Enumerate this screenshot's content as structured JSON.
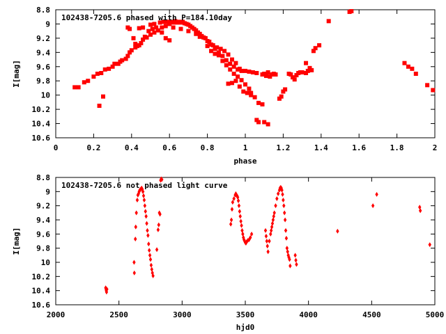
{
  "chart_data": [
    {
      "type": "scatter",
      "title": "102438-7205.6 phased with P=184.10day",
      "xlabel": "phase",
      "ylabel": "I[mag]",
      "xlim": [
        0,
        2
      ],
      "ylim": [
        10.6,
        8.8
      ],
      "y_inverted": true,
      "xticks": [
        0,
        0.2,
        0.4,
        0.6,
        0.8,
        1,
        1.2,
        1.4,
        1.6,
        1.8,
        2
      ],
      "xtick_labels": [
        "0",
        "0.2",
        "0.4",
        "0.6",
        "0.8",
        "1",
        "1.2",
        "1.4",
        "1.6",
        "1.8",
        "2"
      ],
      "yticks": [
        8.8,
        9,
        9.2,
        9.4,
        9.6,
        9.8,
        10,
        10.2,
        10.4,
        10.6
      ],
      "ytick_labels": [
        "8.8",
        "9",
        "9.2",
        "9.4",
        "9.6",
        "9.8",
        "10",
        "10.2",
        "10.4",
        "10.6"
      ],
      "grid": false,
      "marker_color": "#ff0000",
      "marker": "square",
      "points": [
        [
          0.1,
          9.89
        ],
        [
          0.12,
          9.89
        ],
        [
          0.15,
          9.82
        ],
        [
          0.17,
          9.8
        ],
        [
          0.2,
          9.74
        ],
        [
          0.22,
          9.7
        ],
        [
          0.24,
          9.69
        ],
        [
          0.26,
          9.64
        ],
        [
          0.28,
          9.63
        ],
        [
          0.3,
          9.6
        ],
        [
          0.31,
          9.56
        ],
        [
          0.33,
          9.56
        ],
        [
          0.34,
          9.53
        ],
        [
          0.35,
          9.51
        ],
        [
          0.37,
          9.49
        ],
        [
          0.38,
          9.45
        ],
        [
          0.39,
          9.4
        ],
        [
          0.4,
          9.37
        ],
        [
          0.42,
          9.33
        ],
        [
          0.44,
          9.3
        ],
        [
          0.45,
          9.27
        ],
        [
          0.46,
          9.22
        ],
        [
          0.48,
          9.19
        ],
        [
          0.5,
          9.15
        ],
        [
          0.52,
          9.12
        ],
        [
          0.54,
          9.09
        ],
        [
          0.56,
          9.05
        ],
        [
          0.58,
          9.03
        ],
        [
          0.6,
          9.0
        ],
        [
          0.62,
          8.98
        ],
        [
          0.64,
          8.98
        ],
        [
          0.66,
          8.98
        ],
        [
          0.68,
          8.99
        ],
        [
          0.7,
          9.01
        ],
        [
          0.72,
          9.05
        ],
        [
          0.74,
          9.09
        ],
        [
          0.76,
          9.14
        ],
        [
          0.78,
          9.19
        ],
        [
          0.8,
          9.24
        ],
        [
          0.82,
          9.29
        ],
        [
          0.84,
          9.35
        ],
        [
          0.86,
          9.4
        ],
        [
          0.88,
          9.45
        ],
        [
          0.9,
          9.51
        ],
        [
          0.92,
          9.56
        ],
        [
          0.94,
          9.6
        ],
        [
          0.96,
          9.64
        ],
        [
          0.98,
          9.66
        ],
        [
          1.0,
          9.66
        ],
        [
          1.02,
          9.67
        ],
        [
          1.04,
          9.68
        ],
        [
          1.06,
          9.69
        ],
        [
          0.44,
          9.06
        ],
        [
          0.46,
          9.05
        ],
        [
          0.5,
          9.01
        ],
        [
          0.52,
          9.0
        ],
        [
          0.55,
          8.98
        ],
        [
          0.57,
          8.97
        ],
        [
          0.59,
          8.97
        ],
        [
          0.61,
          8.97
        ],
        [
          0.63,
          8.96
        ],
        [
          0.65,
          8.97
        ],
        [
          0.67,
          8.97
        ],
        [
          0.69,
          9.0
        ],
        [
          0.71,
          9.03
        ],
        [
          0.73,
          9.07
        ],
        [
          0.75,
          9.12
        ],
        [
          0.77,
          9.17
        ],
        [
          0.79,
          9.2
        ],
        [
          0.81,
          9.25
        ],
        [
          0.83,
          9.3
        ],
        [
          0.85,
          9.33
        ],
        [
          0.87,
          9.35
        ],
        [
          0.89,
          9.38
        ],
        [
          0.91,
          9.43
        ],
        [
          0.93,
          9.5
        ],
        [
          0.95,
          9.55
        ],
        [
          0.97,
          9.63
        ],
        [
          0.38,
          9.05
        ],
        [
          0.39,
          9.07
        ],
        [
          0.41,
          9.2
        ],
        [
          0.42,
          9.28
        ],
        [
          0.43,
          9.31
        ],
        [
          0.47,
          9.18
        ],
        [
          0.49,
          9.1
        ],
        [
          0.51,
          9.07
        ],
        [
          0.53,
          9.05
        ],
        [
          0.56,
          9.12
        ],
        [
          0.58,
          9.2
        ],
        [
          0.6,
          9.23
        ],
        [
          0.62,
          9.05
        ],
        [
          0.66,
          9.07
        ],
        [
          0.7,
          9.1
        ],
        [
          0.74,
          9.14
        ],
        [
          0.76,
          9.18
        ],
        [
          0.8,
          9.31
        ],
        [
          0.82,
          9.38
        ],
        [
          0.84,
          9.42
        ],
        [
          0.86,
          9.44
        ],
        [
          0.88,
          9.52
        ],
        [
          0.9,
          9.58
        ],
        [
          0.92,
          9.64
        ],
        [
          0.94,
          9.7
        ],
        [
          0.96,
          9.74
        ],
        [
          0.98,
          9.79
        ],
        [
          1.0,
          9.85
        ],
        [
          1.02,
          9.91
        ],
        [
          1.03,
          9.97
        ],
        [
          1.05,
          10.03
        ],
        [
          1.07,
          10.11
        ],
        [
          1.09,
          10.13
        ],
        [
          0.91,
          9.84
        ],
        [
          0.93,
          9.83
        ],
        [
          0.95,
          9.8
        ],
        [
          0.97,
          9.88
        ],
        [
          0.99,
          9.95
        ],
        [
          1.01,
          9.97
        ],
        [
          1.03,
          10.0
        ],
        [
          1.06,
          10.35
        ],
        [
          1.07,
          10.38
        ],
        [
          1.1,
          10.38
        ],
        [
          1.12,
          10.41
        ],
        [
          1.09,
          9.71
        ],
        [
          1.1,
          9.7
        ],
        [
          1.11,
          9.73
        ],
        [
          1.12,
          9.68
        ],
        [
          1.13,
          9.74
        ],
        [
          1.14,
          9.71
        ],
        [
          1.15,
          9.7
        ],
        [
          1.16,
          9.71
        ],
        [
          1.18,
          10.05
        ],
        [
          1.19,
          10.02
        ],
        [
          1.2,
          9.95
        ],
        [
          1.21,
          9.92
        ],
        [
          1.23,
          9.7
        ],
        [
          1.24,
          9.71
        ],
        [
          1.25,
          9.75
        ],
        [
          1.26,
          9.78
        ],
        [
          1.27,
          9.72
        ],
        [
          1.28,
          9.69
        ],
        [
          1.29,
          9.68
        ],
        [
          1.3,
          9.68
        ],
        [
          1.32,
          9.69
        ],
        [
          1.33,
          9.66
        ],
        [
          1.34,
          9.62
        ],
        [
          1.35,
          9.65
        ],
        [
          1.36,
          9.38
        ],
        [
          1.37,
          9.34
        ],
        [
          1.39,
          9.3
        ],
        [
          1.32,
          9.55
        ],
        [
          1.44,
          8.96
        ],
        [
          1.55,
          8.83
        ],
        [
          1.56,
          8.82
        ],
        [
          1.84,
          9.55
        ],
        [
          1.86,
          9.6
        ],
        [
          1.88,
          9.63
        ],
        [
          1.9,
          9.7
        ],
        [
          1.96,
          9.86
        ],
        [
          1.99,
          9.93
        ],
        [
          0.23,
          10.15
        ],
        [
          0.25,
          10.02
        ]
      ]
    },
    {
      "type": "scatter",
      "title": "102438-7205.6 not phased light curve",
      "xlabel": "hjd0",
      "ylabel": "I[mag]",
      "xlim": [
        2000,
        5000
      ],
      "ylim": [
        10.6,
        8.8
      ],
      "y_inverted": true,
      "xticks": [
        2000,
        2500,
        3000,
        3500,
        4000,
        4500,
        5000
      ],
      "xtick_labels": [
        "2000",
        "2500",
        "3000",
        "3500",
        "4000",
        "4500",
        "5000"
      ],
      "yticks": [
        8.8,
        9,
        9.2,
        9.4,
        9.6,
        9.8,
        10,
        10.2,
        10.4,
        10.6
      ],
      "ytick_labels": [
        "8.8",
        "9",
        "9.2",
        "9.4",
        "9.6",
        "9.8",
        "10",
        "10.2",
        "10.4",
        "10.6"
      ],
      "grid": false,
      "marker_color": "#ff0000",
      "marker": "diamond",
      "points": [
        [
          2395,
          10.36
        ],
        [
          2398,
          10.38
        ],
        [
          2400,
          10.4
        ],
        [
          2402,
          10.42
        ],
        [
          2405,
          10.38
        ],
        [
          2620,
          10.0
        ],
        [
          2622,
          10.15
        ],
        [
          2630,
          9.67
        ],
        [
          2633,
          9.5
        ],
        [
          2638,
          9.3
        ],
        [
          2645,
          9.12
        ],
        [
          2650,
          9.05
        ],
        [
          2655,
          9.03
        ],
        [
          2660,
          9.0
        ],
        [
          2665,
          8.98
        ],
        [
          2670,
          8.97
        ],
        [
          2675,
          8.96
        ],
        [
          2680,
          8.95
        ],
        [
          2685,
          8.97
        ],
        [
          2690,
          9.0
        ],
        [
          2695,
          9.06
        ],
        [
          2700,
          9.12
        ],
        [
          2705,
          9.2
        ],
        [
          2710,
          9.28
        ],
        [
          2715,
          9.35
        ],
        [
          2720,
          9.45
        ],
        [
          2725,
          9.55
        ],
        [
          2730,
          9.62
        ],
        [
          2735,
          9.74
        ],
        [
          2740,
          9.83
        ],
        [
          2745,
          9.9
        ],
        [
          2750,
          9.96
        ],
        [
          2755,
          10.04
        ],
        [
          2760,
          10.1
        ],
        [
          2765,
          10.15
        ],
        [
          2770,
          10.19
        ],
        [
          2800,
          9.82
        ],
        [
          2810,
          9.54
        ],
        [
          2815,
          9.47
        ],
        [
          2820,
          9.3
        ],
        [
          2825,
          9.32
        ],
        [
          2830,
          8.84
        ],
        [
          2835,
          8.82
        ],
        [
          2840,
          8.83
        ],
        [
          3385,
          9.46
        ],
        [
          3390,
          9.4
        ],
        [
          3395,
          9.25
        ],
        [
          3400,
          9.15
        ],
        [
          3410,
          9.1
        ],
        [
          3420,
          9.05
        ],
        [
          3425,
          9.03
        ],
        [
          3430,
          9.05
        ],
        [
          3435,
          9.06
        ],
        [
          3440,
          9.08
        ],
        [
          3445,
          9.13
        ],
        [
          3450,
          9.2
        ],
        [
          3455,
          9.28
        ],
        [
          3460,
          9.35
        ],
        [
          3465,
          9.42
        ],
        [
          3470,
          9.48
        ],
        [
          3475,
          9.55
        ],
        [
          3480,
          9.6
        ],
        [
          3485,
          9.65
        ],
        [
          3490,
          9.68
        ],
        [
          3495,
          9.7
        ],
        [
          3500,
          9.72
        ],
        [
          3505,
          9.73
        ],
        [
          3510,
          9.71
        ],
        [
          3520,
          9.69
        ],
        [
          3530,
          9.68
        ],
        [
          3540,
          9.65
        ],
        [
          3550,
          9.6
        ],
        [
          3660,
          9.55
        ],
        [
          3665,
          9.63
        ],
        [
          3670,
          9.7
        ],
        [
          3675,
          9.77
        ],
        [
          3680,
          9.85
        ],
        [
          3690,
          9.7
        ],
        [
          3700,
          9.6
        ],
        [
          3705,
          9.55
        ],
        [
          3710,
          9.5
        ],
        [
          3715,
          9.45
        ],
        [
          3720,
          9.4
        ],
        [
          3725,
          9.35
        ],
        [
          3730,
          9.3
        ],
        [
          3740,
          9.2
        ],
        [
          3750,
          9.1
        ],
        [
          3760,
          9.03
        ],
        [
          3770,
          8.98
        ],
        [
          3775,
          8.95
        ],
        [
          3780,
          8.94
        ],
        [
          3785,
          8.95
        ],
        [
          3790,
          8.98
        ],
        [
          3795,
          9.04
        ],
        [
          3800,
          9.12
        ],
        [
          3805,
          9.2
        ],
        [
          3810,
          9.3
        ],
        [
          3815,
          9.4
        ],
        [
          3820,
          9.55
        ],
        [
          3825,
          9.66
        ],
        [
          3830,
          9.8
        ],
        [
          3835,
          9.85
        ],
        [
          3840,
          9.9
        ],
        [
          3845,
          9.93
        ],
        [
          3850,
          9.96
        ],
        [
          3855,
          10.05
        ],
        [
          3895,
          9.9
        ],
        [
          3900,
          9.97
        ],
        [
          3905,
          10.03
        ],
        [
          4230,
          9.56
        ],
        [
          4510,
          9.2
        ],
        [
          4540,
          9.04
        ],
        [
          4880,
          9.22
        ],
        [
          4885,
          9.27
        ],
        [
          4960,
          9.75
        ]
      ]
    }
  ]
}
